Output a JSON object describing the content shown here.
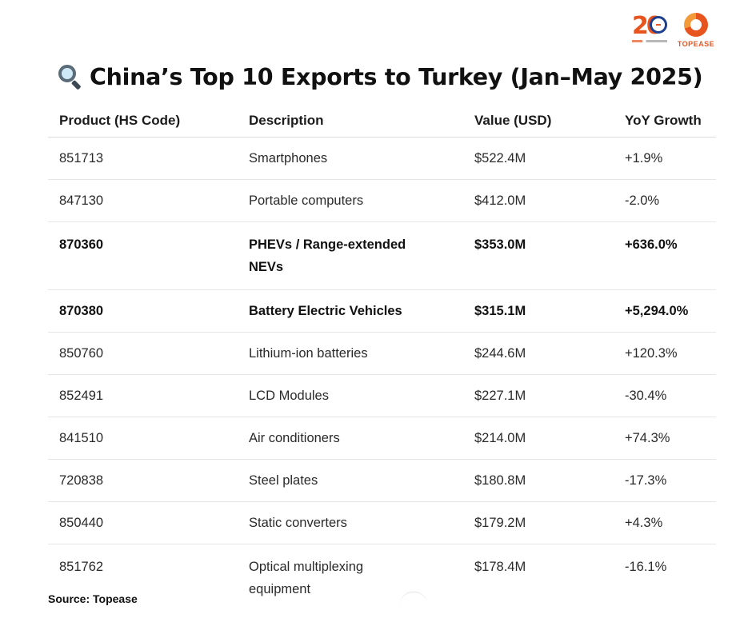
{
  "title": "China’s Top 10 Exports to Turkey (Jan–May 2025)",
  "title_icon": "magnifying-glass-icon",
  "logos": {
    "anniversary": "20",
    "brand": "TOPEASE"
  },
  "table": {
    "headers": [
      "Product (HS Code)",
      "Description",
      "Value (USD)",
      "YoY Growth"
    ],
    "rows": [
      {
        "code": "851713",
        "description": "Smartphones",
        "value": "$522.4M",
        "growth": "+1.9%"
      },
      {
        "code": "847130",
        "description": "Portable computers",
        "value": "$412.0M",
        "growth": "-2.0%"
      },
      {
        "code": "870360",
        "description": "PHEVs / Range-extended NEVs",
        "value": "$353.0M",
        "growth": "+636.0%"
      },
      {
        "code": "870380",
        "description": "Battery Electric Vehicles",
        "value": "$315.1M",
        "growth": "+5,294.0%"
      },
      {
        "code": "850760",
        "description": "Lithium-ion batteries",
        "value": "$244.6M",
        "growth": "+120.3%"
      },
      {
        "code": "852491",
        "description": "LCD Modules",
        "value": "$227.1M",
        "growth": "-30.4%"
      },
      {
        "code": "841510",
        "description": "Air conditioners",
        "value": "$214.0M",
        "growth": "+74.3%"
      },
      {
        "code": "720838",
        "description": "Steel plates",
        "value": "$180.8M",
        "growth": "-17.3%"
      },
      {
        "code": "850440",
        "description": "Static converters",
        "value": "$179.2M",
        "growth": "+4.3%"
      },
      {
        "code": "851762",
        "description": "Optical multiplexing equipment",
        "value": "$178.4M",
        "growth": "-16.1%"
      }
    ]
  },
  "source": "Source: Topease"
}
